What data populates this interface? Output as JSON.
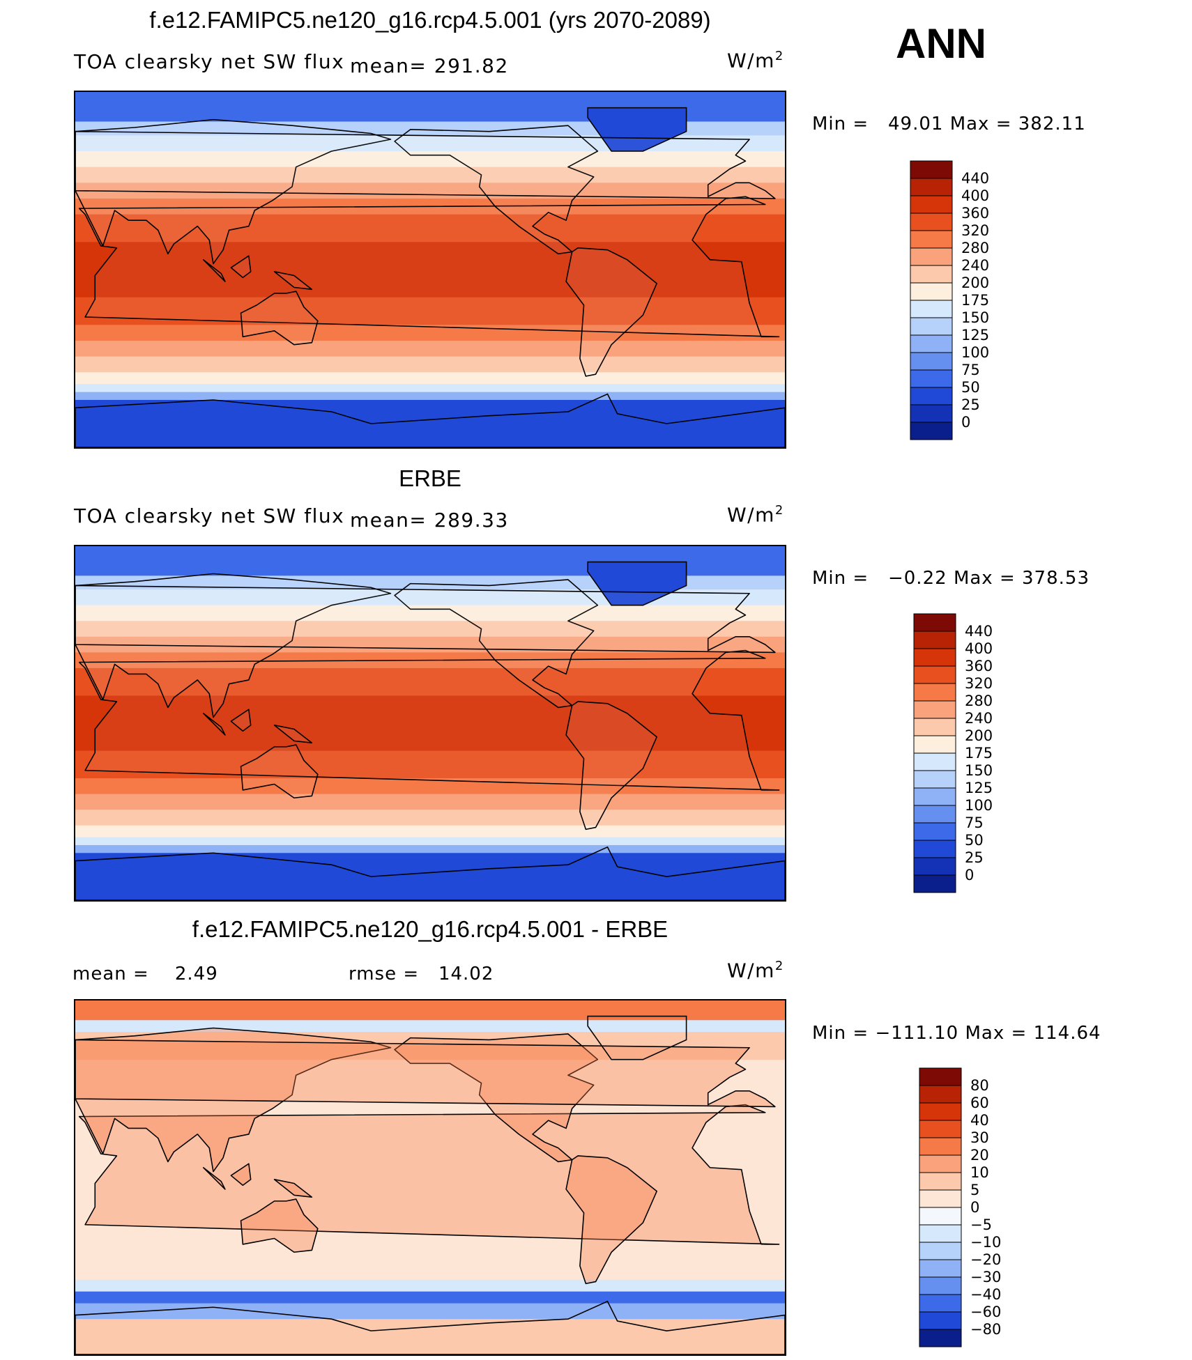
{
  "season": "ANN",
  "panels": [
    {
      "title": "f.e12.FAMIPC5.ne120_g16.rcp4.5.001 (yrs 2070-2089)",
      "variable": "TOA clearsky net SW flux",
      "mean_label": "mean=",
      "mean_value": "291.82",
      "units": "W/m",
      "units_sup": "2",
      "min_label": "Min =",
      "min_value": "49.01",
      "max_label": "Max =",
      "max_value": "382.11",
      "colorbar": {
        "levels": [
          "440",
          "400",
          "360",
          "320",
          "280",
          "240",
          "200",
          "175",
          "150",
          "125",
          "100",
          "75",
          "50",
          "25",
          "0"
        ],
        "colors": [
          "#7e0a05",
          "#b82306",
          "#d63409",
          "#e8511f",
          "#f57a48",
          "#f9a27c",
          "#fcc9ad",
          "#fdeedd",
          "#d6e8fb",
          "#b6d2fb",
          "#8fb2f7",
          "#6690f0",
          "#3d6ae8",
          "#1f49d6",
          "#1432b6",
          "#0a1e8c"
        ]
      },
      "map_type": "absolute"
    },
    {
      "title": "ERBE",
      "variable": "TOA clearsky net SW flux",
      "mean_label": "mean=",
      "mean_value": "289.33",
      "units": "W/m",
      "units_sup": "2",
      "min_label": "Min =",
      "min_value": "−0.22",
      "max_label": "Max =",
      "max_value": "378.53",
      "colorbar": {
        "levels": [
          "440",
          "400",
          "360",
          "320",
          "280",
          "240",
          "200",
          "175",
          "150",
          "125",
          "100",
          "75",
          "50",
          "25",
          "0"
        ],
        "colors": [
          "#7e0a05",
          "#b82306",
          "#d63409",
          "#e8511f",
          "#f57a48",
          "#f9a27c",
          "#fcc9ad",
          "#fdeedd",
          "#d6e8fb",
          "#b6d2fb",
          "#8fb2f7",
          "#6690f0",
          "#3d6ae8",
          "#1f49d6",
          "#1432b6",
          "#0a1e8c"
        ]
      },
      "map_type": "absolute"
    },
    {
      "title": "f.e12.FAMIPC5.ne120_g16.rcp4.5.001 - ERBE",
      "mean_label": "mean =",
      "mean_value": "2.49",
      "rmse_label": "rmse =",
      "rmse_value": "14.02",
      "units": "W/m",
      "units_sup": "2",
      "min_label": "Min =",
      "min_value": "−111.10",
      "max_label": "Max =",
      "max_value": "114.64",
      "colorbar": {
        "levels": [
          "80",
          "60",
          "40",
          "30",
          "20",
          "10",
          "5",
          "0",
          "−5",
          "−10",
          "−20",
          "−30",
          "−40",
          "−60",
          "−80"
        ],
        "colors": [
          "#7e0a05",
          "#b82306",
          "#d63409",
          "#e8511f",
          "#f57a48",
          "#f9a27c",
          "#fcc9ad",
          "#fde6d6",
          "#f4f8fd",
          "#d6e8fb",
          "#b6d2fb",
          "#8fb2f7",
          "#6690f0",
          "#3d6ae8",
          "#1f49d6",
          "#0a1e8c"
        ]
      },
      "map_type": "difference"
    }
  ]
}
